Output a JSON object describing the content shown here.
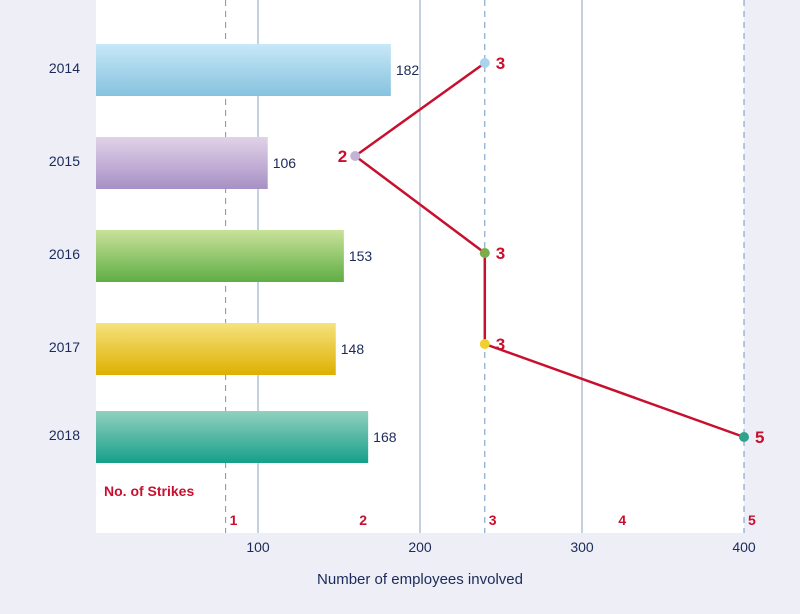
{
  "chart_data": {
    "type": "bar",
    "orientation": "horizontal",
    "categories": [
      "2014",
      "2015",
      "2016",
      "2017",
      "2018"
    ],
    "series": [
      {
        "values": [
          182,
          106,
          153,
          148,
          168
        ]
      },
      {
        "name": "No. of Strikes",
        "type": "line",
        "values": [
          3,
          2,
          3,
          3,
          5
        ]
      }
    ],
    "xlabel": "Number of employees involved",
    "x_ticks": [
      "100",
      "200",
      "300",
      "400"
    ],
    "xlim": [
      0,
      400
    ],
    "strike_ticks": [
      "1",
      "2",
      "3",
      "4",
      "5"
    ],
    "strike_range": [
      0,
      5
    ],
    "bar_colors": [
      [
        "#c7e8f7",
        "#86c2df"
      ],
      [
        "#e2d2e8",
        "#a690c5"
      ],
      [
        "#c9e29a",
        "#5fae45"
      ],
      [
        "#f6e27e",
        "#ddb000"
      ],
      [
        "#92d0bf",
        "#14a08b"
      ]
    ],
    "marker_colors": [
      "#a9d3ee",
      "#c3b4d6",
      "#79ae4b",
      "#f1cf2e",
      "#2fa38e"
    ],
    "line_color": "#c8102e",
    "grid": true
  }
}
